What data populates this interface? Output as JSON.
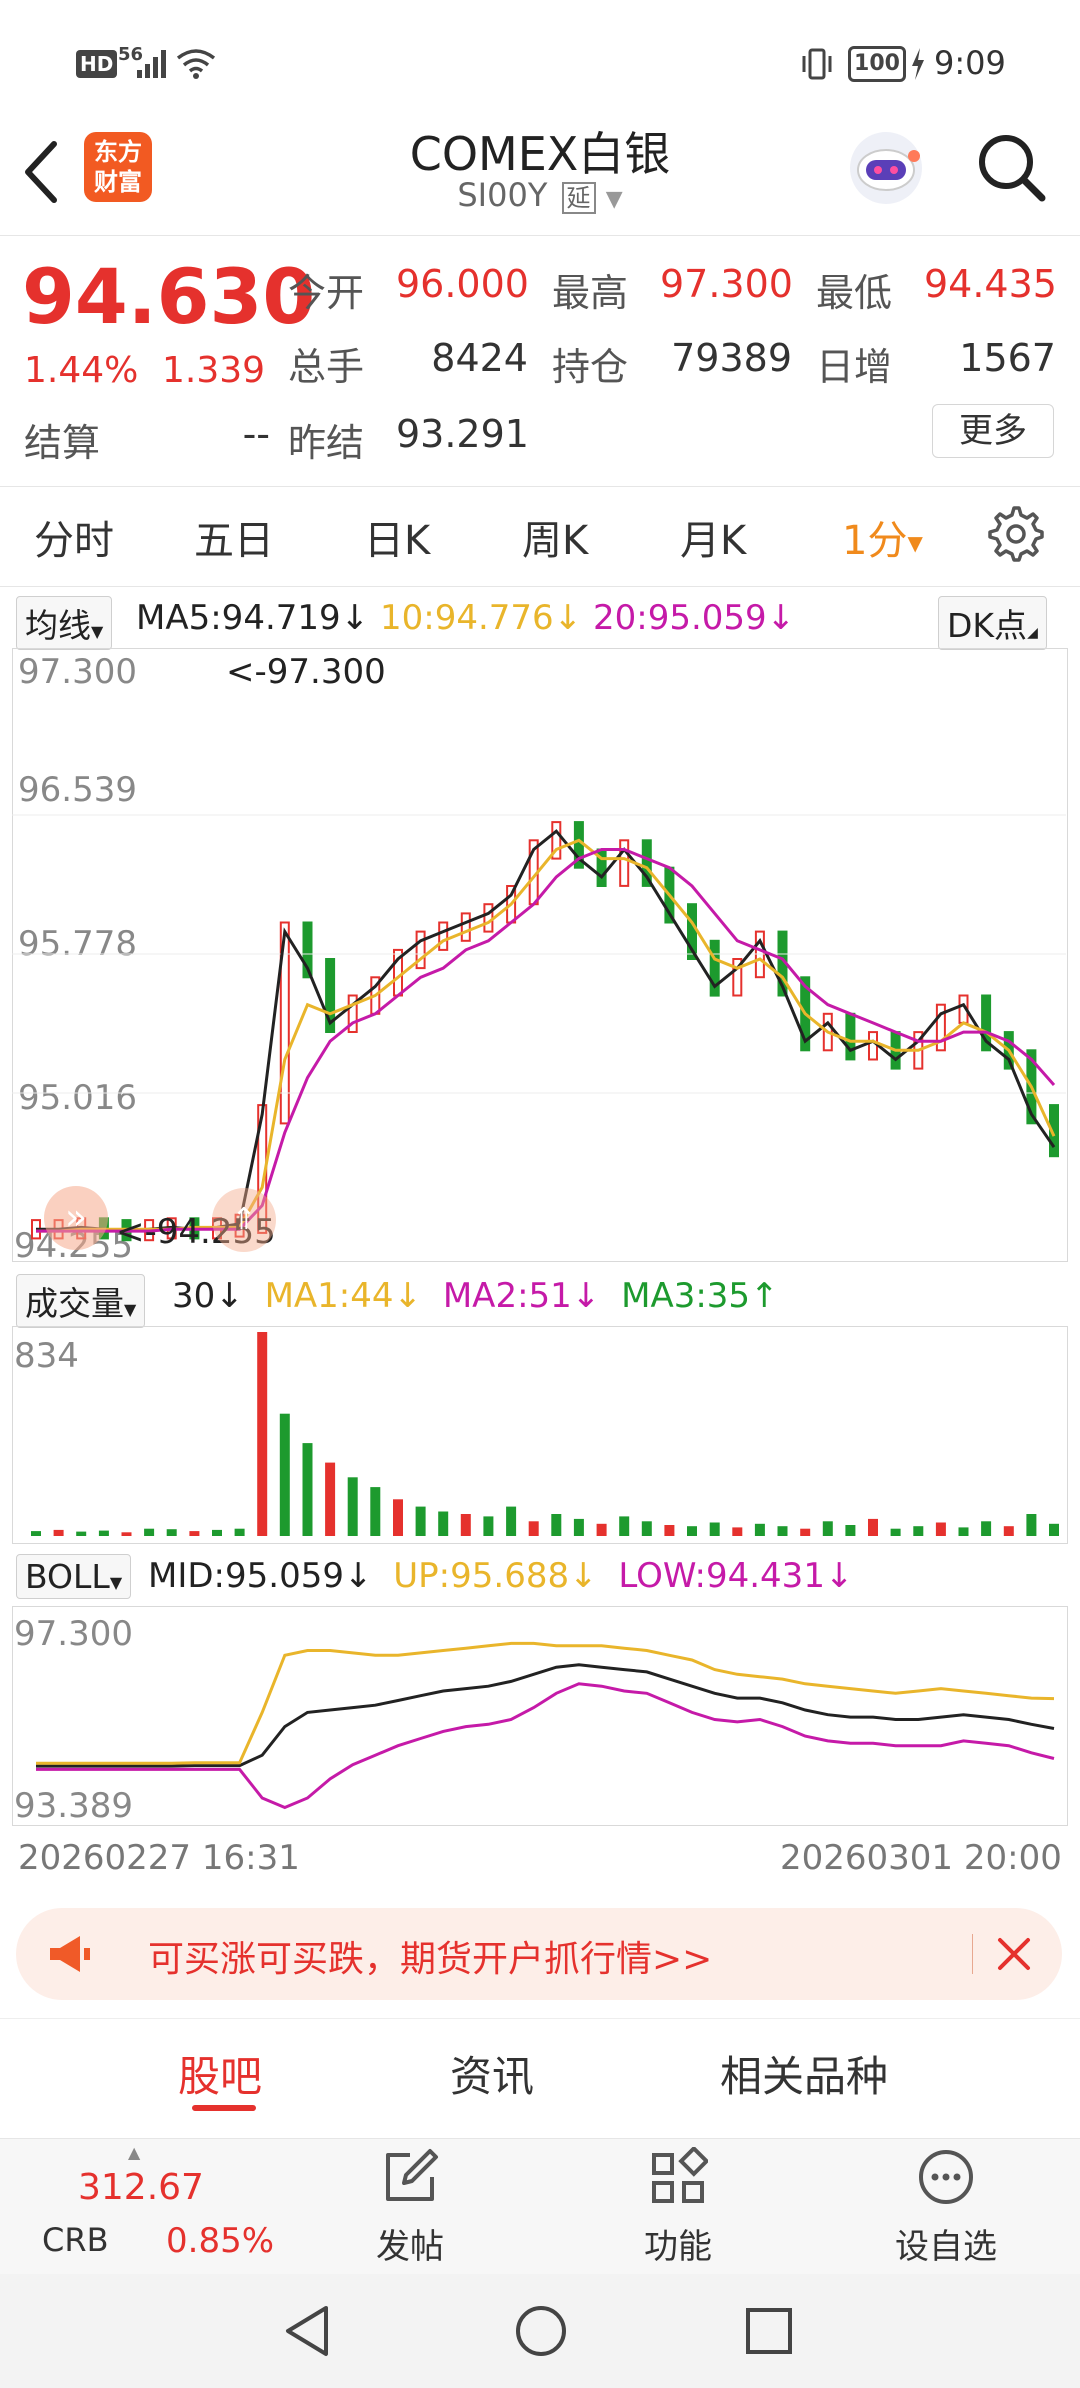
{
  "status_bar": {
    "left_icons": [
      "hd-icon",
      "5g-signal-icon",
      "wifi-icon"
    ],
    "hd": "HD",
    "net": "56",
    "battery": "100",
    "time": "9:09"
  },
  "header": {
    "logo_line1": "东方",
    "logo_line2": "财富",
    "title": "COMEX白银",
    "code": "SI00Y",
    "delay_tag": "延"
  },
  "quote": {
    "price": "94.630",
    "change_pct": "1.44%",
    "change_amt": "1.339",
    "open_label": "今开",
    "open": "96.000",
    "high_label": "最高",
    "high": "97.300",
    "low_label": "最低",
    "low": "94.435",
    "volume_label": "总手",
    "volume": "8424",
    "oi_label": "持仓",
    "oi": "79389",
    "daily_inc_label": "日增",
    "daily_inc": "1567",
    "settle_label": "结算",
    "settle": "--",
    "prev_settle_label": "昨结",
    "prev_settle": "93.291",
    "more": "更多"
  },
  "period_tabs": {
    "items": [
      "分时",
      "五日",
      "日K",
      "周K",
      "月K"
    ],
    "active": "1分"
  },
  "ma_legend": {
    "selector": "均线",
    "ma5": "MA5:94.719",
    "ma10": "10:94.776",
    "ma20": "20:95.059",
    "dk": "DK点",
    "colors": {
      "ma5": "#222222",
      "ma10": "#e9b52b",
      "ma20": "#c51aa8"
    }
  },
  "price_axis": {
    "labels": [
      "97.300",
      "96.539",
      "95.778",
      "95.016",
      "94.255"
    ],
    "high_marker": "<-97.300",
    "low_marker": "<-94.255"
  },
  "volume_legend": {
    "selector": "成交量",
    "n": "30",
    "ma1": "MA1:44",
    "ma2": "MA2:51",
    "ma3": "MA3:35",
    "max_label": "834"
  },
  "boll_legend": {
    "selector": "BOLL",
    "mid": "MID:95.059",
    "up": "UP:95.688",
    "low": "LOW:94.431",
    "top_label": "97.300",
    "bottom_label": "93.389"
  },
  "time_axis": {
    "start": "20260227 16:31",
    "end": "20260301 20:00"
  },
  "promo": {
    "text": "可买涨可买跌，期货开户抓行情>>"
  },
  "bottom_tabs": {
    "items": [
      "股吧",
      "资讯",
      "相关品种"
    ],
    "active_index": 0
  },
  "toolbar": {
    "crb_value": "312.67",
    "crb_label": "CRB",
    "crb_change": "0.85%",
    "post": "发帖",
    "func": "功能",
    "watch": "设自选"
  },
  "chart_data": [
    {
      "type": "line",
      "title": "",
      "series": [
        {
          "name": "MA5",
          "values": [
            94.27,
            94.27,
            94.28,
            94.27,
            94.26,
            94.27,
            94.28,
            94.27,
            94.28,
            94.3,
            94.9,
            95.9,
            95.7,
            95.4,
            95.5,
            95.6,
            95.75,
            95.85,
            95.9,
            95.95,
            96.0,
            96.1,
            96.35,
            96.45,
            96.3,
            96.2,
            96.35,
            96.2,
            96.0,
            95.8,
            95.6,
            95.7,
            95.85,
            95.6,
            95.3,
            95.4,
            95.25,
            95.3,
            95.2,
            95.3,
            95.45,
            95.5,
            95.3,
            95.2,
            94.9,
            94.72
          ]
        },
        {
          "name": "MA10",
          "values": [
            94.26,
            94.26,
            94.27,
            94.27,
            94.27,
            94.27,
            94.27,
            94.28,
            94.28,
            94.28,
            94.5,
            95.2,
            95.5,
            95.45,
            95.5,
            95.55,
            95.65,
            95.75,
            95.85,
            95.9,
            95.95,
            96.05,
            96.2,
            96.35,
            96.4,
            96.3,
            96.3,
            96.25,
            96.1,
            95.95,
            95.75,
            95.7,
            95.75,
            95.65,
            95.45,
            95.35,
            95.3,
            95.3,
            95.25,
            95.25,
            95.3,
            95.4,
            95.35,
            95.25,
            95.05,
            94.78
          ]
        },
        {
          "name": "MA20",
          "values": [
            94.26,
            94.26,
            94.26,
            94.26,
            94.26,
            94.26,
            94.27,
            94.27,
            94.27,
            94.27,
            94.4,
            94.8,
            95.1,
            95.3,
            95.4,
            95.45,
            95.55,
            95.65,
            95.7,
            95.8,
            95.85,
            95.95,
            96.05,
            96.2,
            96.3,
            96.35,
            96.35,
            96.3,
            96.25,
            96.15,
            96.0,
            95.85,
            95.8,
            95.75,
            95.6,
            95.5,
            95.45,
            95.4,
            95.35,
            95.3,
            95.3,
            95.35,
            95.35,
            95.3,
            95.2,
            95.06
          ]
        }
      ],
      "ylim": [
        94.255,
        97.3
      ]
    },
    {
      "type": "bar",
      "title": "",
      "values": [
        20,
        25,
        18,
        22,
        15,
        30,
        28,
        20,
        25,
        30,
        834,
        500,
        380,
        300,
        240,
        200,
        150,
        120,
        100,
        90,
        80,
        120,
        60,
        90,
        70,
        50,
        80,
        60,
        45,
        40,
        55,
        35,
        50,
        40,
        30,
        60,
        45,
        70,
        30,
        40,
        55,
        35,
        60,
        40,
        90,
        50
      ],
      "ylim": [
        0,
        834
      ]
    },
    {
      "type": "line",
      "title": "",
      "series": [
        {
          "name": "MID",
          "values": [
            94.27,
            94.27,
            94.27,
            94.27,
            94.27,
            94.27,
            94.27,
            94.28,
            94.28,
            94.28,
            94.5,
            95.1,
            95.4,
            95.45,
            95.5,
            95.55,
            95.65,
            95.75,
            95.85,
            95.9,
            95.95,
            96.05,
            96.2,
            96.35,
            96.4,
            96.35,
            96.3,
            96.25,
            96.1,
            95.95,
            95.8,
            95.7,
            95.7,
            95.6,
            95.45,
            95.35,
            95.3,
            95.3,
            95.25,
            95.25,
            95.3,
            95.35,
            95.3,
            95.25,
            95.15,
            95.06
          ]
        },
        {
          "name": "UP",
          "values": [
            94.33,
            94.33,
            94.33,
            94.33,
            94.33,
            94.33,
            94.33,
            94.34,
            94.34,
            94.34,
            95.4,
            96.6,
            96.7,
            96.7,
            96.65,
            96.6,
            96.6,
            96.65,
            96.7,
            96.75,
            96.8,
            96.85,
            96.85,
            96.8,
            96.8,
            96.8,
            96.75,
            96.7,
            96.6,
            96.5,
            96.3,
            96.2,
            96.15,
            96.1,
            96.0,
            95.95,
            95.9,
            95.85,
            95.8,
            95.85,
            95.9,
            95.85,
            95.8,
            95.75,
            95.7,
            95.69
          ]
        },
        {
          "name": "LOW",
          "values": [
            94.2,
            94.2,
            94.2,
            94.2,
            94.2,
            94.2,
            94.2,
            94.2,
            94.2,
            94.2,
            93.6,
            93.4,
            93.6,
            94.0,
            94.3,
            94.5,
            94.7,
            94.85,
            95.0,
            95.1,
            95.15,
            95.25,
            95.5,
            95.8,
            96.0,
            95.95,
            95.85,
            95.8,
            95.6,
            95.4,
            95.25,
            95.2,
            95.25,
            95.1,
            94.9,
            94.8,
            94.75,
            94.75,
            94.7,
            94.7,
            94.7,
            94.8,
            94.75,
            94.7,
            94.55,
            94.43
          ]
        }
      ],
      "ylim": [
        93.389,
        97.3
      ]
    }
  ]
}
